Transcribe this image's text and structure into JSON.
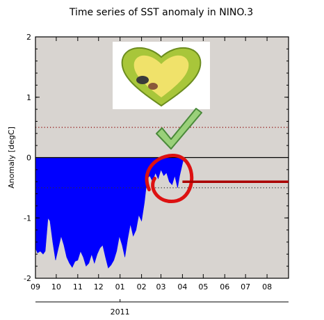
{
  "chart_data": {
    "type": "area",
    "title": "Time series of SST anomaly in NINO.3",
    "ylabel": "Anomaly [degC]",
    "xlabel": "",
    "year_label": "2011",
    "ylim": [
      -2,
      2
    ],
    "yticks": [
      -2,
      -1,
      0,
      1,
      2
    ],
    "ytick_labels": [
      "-2",
      "-1",
      "0",
      "1",
      "2"
    ],
    "x_start": "2010-09-01",
    "x_end": "2011-09-01",
    "xticks": [
      "2010-09-01",
      "2010-10-01",
      "2010-11-01",
      "2010-12-01",
      "2011-01-01",
      "2011-02-01",
      "2011-03-01",
      "2011-04-01",
      "2011-05-01",
      "2011-06-01",
      "2011-07-01",
      "2011-08-01"
    ],
    "xtick_labels": [
      "09",
      "10",
      "11",
      "12",
      "01",
      "02",
      "03",
      "04",
      "05",
      "06",
      "07",
      "08"
    ],
    "grid": false,
    "reference_lines": [
      {
        "value": 0.5,
        "color": "#8b0000",
        "style": "dotted"
      },
      {
        "value": -0.5,
        "color": "#333333",
        "style": "dotted"
      },
      {
        "value": 0,
        "color": "#000000",
        "style": "solid"
      }
    ],
    "series": [
      {
        "color": "#0000ff",
        "points": [
          [
            "2010-09-01",
            -1.5
          ],
          [
            "2010-09-04",
            -1.58
          ],
          [
            "2010-09-08",
            -1.55
          ],
          [
            "2010-09-12",
            -1.6
          ],
          [
            "2010-09-15",
            -1.55
          ],
          [
            "2010-09-19",
            -1.0
          ],
          [
            "2010-09-22",
            -1.05
          ],
          [
            "2010-09-26",
            -1.4
          ],
          [
            "2010-09-30",
            -1.7
          ],
          [
            "2010-10-04",
            -1.5
          ],
          [
            "2010-10-08",
            -1.3
          ],
          [
            "2010-10-12",
            -1.45
          ],
          [
            "2010-10-16",
            -1.65
          ],
          [
            "2010-10-20",
            -1.75
          ],
          [
            "2010-10-24",
            -1.82
          ],
          [
            "2010-10-28",
            -1.72
          ],
          [
            "2010-11-01",
            -1.7
          ],
          [
            "2010-11-05",
            -1.55
          ],
          [
            "2010-11-09",
            -1.65
          ],
          [
            "2010-11-13",
            -1.8
          ],
          [
            "2010-11-17",
            -1.75
          ],
          [
            "2010-11-21",
            -1.6
          ],
          [
            "2010-11-25",
            -1.75
          ],
          [
            "2010-11-29",
            -1.6
          ],
          [
            "2010-12-03",
            -1.5
          ],
          [
            "2010-12-07",
            -1.45
          ],
          [
            "2010-12-11",
            -1.65
          ],
          [
            "2010-12-15",
            -1.83
          ],
          [
            "2010-12-19",
            -1.78
          ],
          [
            "2010-12-23",
            -1.7
          ],
          [
            "2010-12-27",
            -1.55
          ],
          [
            "2010-12-31",
            -1.3
          ],
          [
            "2011-01-04",
            -1.45
          ],
          [
            "2011-01-08",
            -1.65
          ],
          [
            "2011-01-12",
            -1.35
          ],
          [
            "2011-01-16",
            -1.1
          ],
          [
            "2011-01-20",
            -1.3
          ],
          [
            "2011-01-24",
            -1.2
          ],
          [
            "2011-01-28",
            -0.95
          ],
          [
            "2011-02-01",
            -1.05
          ],
          [
            "2011-02-05",
            -0.75
          ],
          [
            "2011-02-09",
            -0.35
          ],
          [
            "2011-02-13",
            -0.3
          ],
          [
            "2011-02-17",
            -0.4
          ],
          [
            "2011-02-21",
            -0.25
          ],
          [
            "2011-02-25",
            -0.35
          ],
          [
            "2011-03-01",
            -0.2
          ],
          [
            "2011-03-05",
            -0.3
          ],
          [
            "2011-03-09",
            -0.25
          ],
          [
            "2011-03-13",
            -0.4
          ],
          [
            "2011-03-17",
            -0.45
          ],
          [
            "2011-03-21",
            -0.3
          ],
          [
            "2011-03-25",
            -0.5
          ],
          [
            "2011-03-28",
            -0.3
          ],
          [
            "2011-04-01",
            -0.1
          ],
          [
            "2011-04-03",
            0.0
          ]
        ]
      }
    ],
    "annotations": [
      {
        "type": "heart-logo-image",
        "color": "#a8c63a"
      },
      {
        "type": "check-mark",
        "color": "#7fbf5a"
      },
      {
        "type": "red-circle",
        "color": "#dd1111"
      },
      {
        "type": "red-horizontal-line",
        "value": -0.4,
        "from": "2011-04-01",
        "to": "2011-09-01",
        "color": "#aa0000"
      }
    ]
  }
}
